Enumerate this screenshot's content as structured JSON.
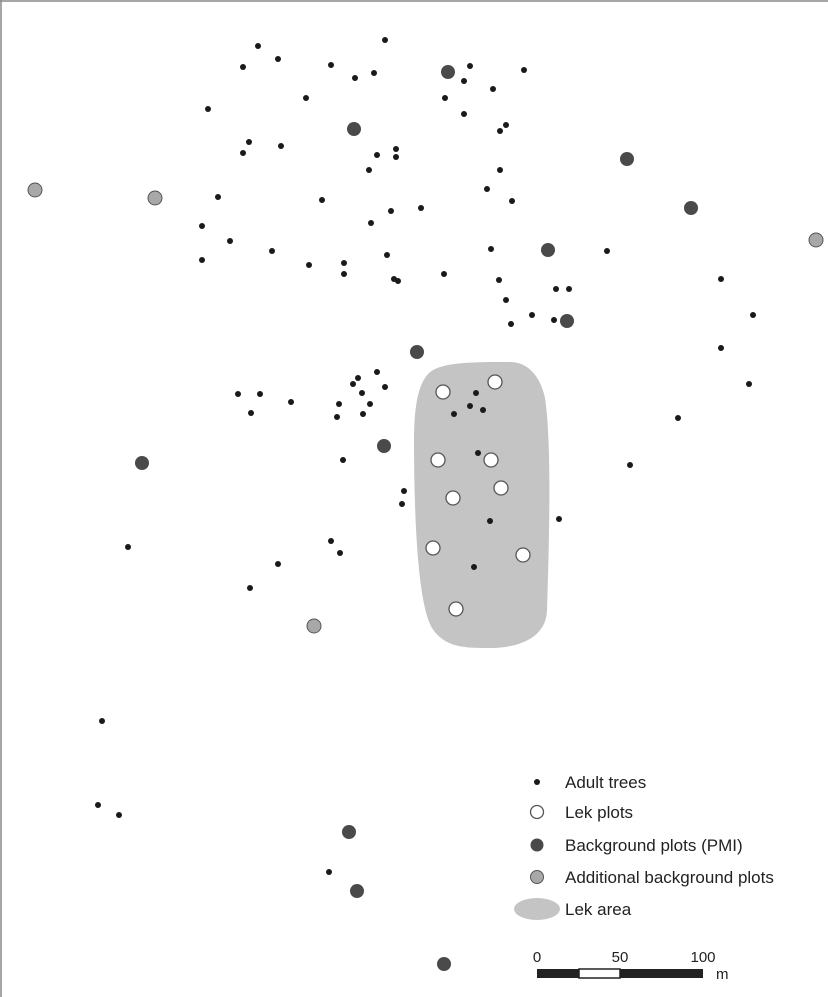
{
  "colors": {
    "tree": "#1a1a1a",
    "lek_plot_fill": "#ffffff",
    "lek_plot_stroke": "#555555",
    "background_plot": "#4a4a4a",
    "additional_plot": "#a8a8a8",
    "lek_area": "#c4c4c4",
    "frame": "#888888"
  },
  "legend": {
    "adult_trees": "Adult trees",
    "lek_plots": "Lek plots",
    "background_plots": "Background plots (PMI)",
    "additional_plots": "Additional background plots",
    "lek_area": "Lek area"
  },
  "scale_bar": {
    "ticks": [
      "0",
      "50",
      "100"
    ],
    "unit": "m"
  }
}
